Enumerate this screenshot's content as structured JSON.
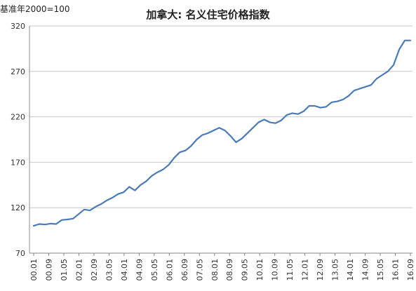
{
  "header": {
    "unit_note": "基准年2000=100"
  },
  "chart_data": {
    "type": "line",
    "title": "加拿大: 名义住宅价格指数",
    "subtitle": "基准年2000=100",
    "xlabel": "",
    "ylabel": "",
    "ylim": [
      70,
      320
    ],
    "yticks": [
      70,
      120,
      170,
      220,
      270,
      320
    ],
    "xticks": [
      "00.01",
      "00.09",
      "01.05",
      "02.01",
      "02.09",
      "03.05",
      "04.01",
      "04.09",
      "05.05",
      "06.01",
      "06.09",
      "07.05",
      "08.01",
      "08.09",
      "09.05",
      "10.01",
      "10.09",
      "11.05",
      "12.01",
      "12.09",
      "13.05",
      "14.01",
      "14.09",
      "15.05",
      "16.01",
      "16.09"
    ],
    "grid": true,
    "legend": "none",
    "line_color": "#4a7ab8",
    "series": [
      {
        "values": [
          100,
          102,
          101.5,
          102.5,
          102,
          106.5,
          107,
          108,
          113,
          118,
          117,
          121,
          124,
          128,
          131,
          135,
          137,
          143,
          139,
          145,
          149,
          155,
          159,
          162,
          167,
          175,
          181,
          183,
          188,
          195,
          200,
          202,
          205,
          208,
          205,
          199,
          192,
          196,
          202,
          208,
          214,
          217,
          214,
          213,
          216,
          222,
          224,
          223,
          226,
          232,
          232,
          230,
          231,
          236,
          237,
          239,
          243,
          249,
          251,
          253,
          255,
          262,
          266,
          270,
          277,
          294,
          304,
          304
        ]
      }
    ]
  }
}
